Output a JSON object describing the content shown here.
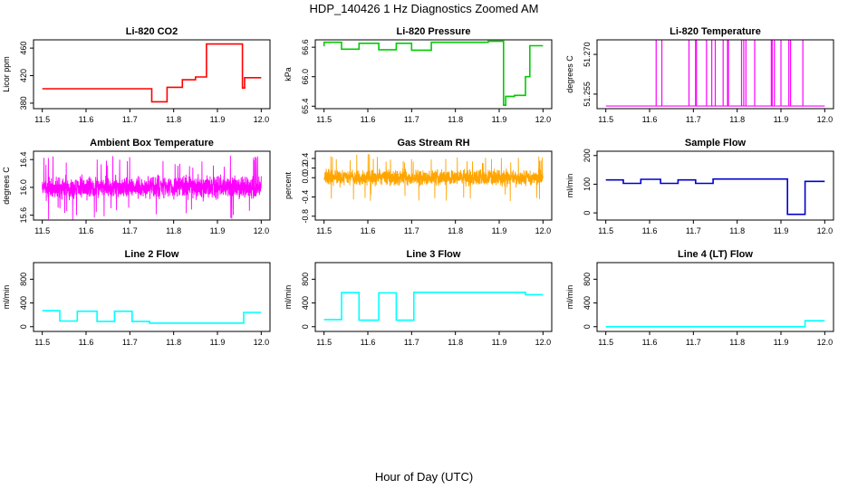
{
  "figure": {
    "title": "HDP_140426  1 Hz Diagnostics Zoomed AM",
    "xlabel": "Hour of Day (UTC)"
  },
  "chart_data": [
    {
      "type": "line",
      "title": "Li-820 CO2",
      "ylabel": "Licor ppm",
      "color": "#ff0000",
      "xlim": [
        11.48,
        12.02
      ],
      "ylim": [
        372,
        472
      ],
      "xticks": [
        "11.5",
        "11.6",
        "11.7",
        "11.8",
        "11.9",
        "12.0"
      ],
      "yticks": [
        "380",
        "420",
        "460"
      ],
      "ytick_values": [
        380,
        420,
        460
      ],
      "series": [
        {
          "x": [
            11.5,
            11.75,
            11.75,
            11.785,
            11.785,
            11.82,
            11.82,
            11.85,
            11.85,
            11.875,
            11.875,
            11.957,
            11.957,
            11.962,
            11.962,
            12.0
          ],
          "y": [
            401,
            401,
            382,
            382,
            403,
            403,
            414,
            414,
            418,
            418,
            466,
            466,
            402,
            402,
            417,
            417
          ]
        }
      ]
    },
    {
      "type": "line",
      "title": "Li-820 Pressure",
      "ylabel": "kPa",
      "color": "#00cc00",
      "xlim": [
        11.48,
        12.02
      ],
      "ylim": [
        65.35,
        66.75
      ],
      "xticks": [
        "11.5",
        "11.6",
        "11.7",
        "11.8",
        "11.9",
        "12.0"
      ],
      "yticks": [
        "65.4",
        "66.0",
        "66.6"
      ],
      "ytick_values": [
        65.4,
        66.0,
        66.6
      ],
      "series": [
        {
          "x": [
            11.5,
            11.5,
            11.54,
            11.54,
            11.58,
            11.58,
            11.625,
            11.625,
            11.665,
            11.665,
            11.7,
            11.7,
            11.745,
            11.745,
            11.875,
            11.875,
            11.91,
            11.91,
            11.915,
            11.915,
            11.935,
            11.935,
            11.96,
            11.96,
            11.97,
            11.97,
            12.0
          ],
          "y": [
            66.62,
            66.7,
            66.7,
            66.56,
            66.56,
            66.68,
            66.68,
            66.55,
            66.55,
            66.68,
            66.68,
            66.54,
            66.54,
            66.7,
            66.7,
            66.72,
            66.72,
            65.42,
            65.42,
            65.6,
            65.6,
            65.62,
            65.62,
            66.0,
            66.0,
            66.63,
            66.63
          ]
        }
      ]
    },
    {
      "type": "line",
      "title": "Li-820 Temperature",
      "ylabel": "degrees C",
      "color": "#ff00ff",
      "xlim": [
        11.48,
        12.02
      ],
      "ylim": [
        51.2495,
        51.2755
      ],
      "xticks": [
        "11.5",
        "11.6",
        "11.7",
        "11.8",
        "11.9",
        "12.0"
      ],
      "yticks": [
        "51.255",
        "51.270"
      ],
      "ytick_values": [
        51.255,
        51.27
      ],
      "baseline": 51.2505,
      "spike_level": 51.2755,
      "spike_x": [
        11.615,
        11.628,
        11.69,
        11.705,
        11.707,
        11.73,
        11.742,
        11.75,
        11.768,
        11.778,
        11.78,
        11.81,
        11.815,
        11.82,
        11.84,
        11.878,
        11.88,
        11.885,
        11.9,
        11.918,
        11.922,
        11.95
      ]
    },
    {
      "type": "line",
      "title": "Ambient Box Temperature",
      "ylabel": "degrees C",
      "color": "#ff00ff",
      "xlim": [
        11.48,
        12.02
      ],
      "ylim": [
        15.53,
        16.52
      ],
      "xticks": [
        "11.5",
        "11.6",
        "11.7",
        "11.8",
        "11.9",
        "12.0"
      ],
      "yticks": [
        "15.6",
        "16.0",
        "16.4"
      ],
      "ytick_values": [
        15.6,
        16.0,
        16.4
      ],
      "noise": {
        "center": 16.0,
        "amplitude": 0.22,
        "spike": 0.47,
        "samples": 1800,
        "seed": 7
      }
    },
    {
      "type": "line",
      "title": "Gas Stream RH",
      "ylabel": "percent",
      "color": "#ffa500",
      "xlim": [
        11.48,
        12.02
      ],
      "ylim": [
        -0.88,
        0.55
      ],
      "xticks": [
        "11.5",
        "11.6",
        "11.7",
        "11.8",
        "11.9",
        "12.0"
      ],
      "yticks": [
        "-0.8",
        "-0.4",
        "0.0",
        "0.2",
        "0.4"
      ],
      "ytick_values": [
        -0.8,
        -0.4,
        0.0,
        0.2,
        0.4
      ],
      "noise": {
        "center": 0.0,
        "amplitude": 0.22,
        "spike": 0.5,
        "samples": 1800,
        "seed": 13,
        "min": -0.82,
        "max": 0.5
      }
    },
    {
      "type": "line",
      "title": "Sample Flow",
      "ylabel": "ml/min",
      "color": "#0000cc",
      "xlim": [
        11.48,
        12.02
      ],
      "ylim": [
        -25,
        215
      ],
      "xticks": [
        "11.5",
        "11.6",
        "11.7",
        "11.8",
        "11.9",
        "12.0"
      ],
      "yticks": [
        "0",
        "100",
        "200"
      ],
      "ytick_values": [
        0,
        100,
        200
      ],
      "series": [
        {
          "x": [
            11.5,
            11.54,
            11.54,
            11.58,
            11.58,
            11.625,
            11.625,
            11.665,
            11.665,
            11.705,
            11.705,
            11.745,
            11.745,
            11.915,
            11.915,
            11.955,
            11.955,
            12.0
          ],
          "y": [
            115,
            115,
            103,
            103,
            117,
            117,
            103,
            103,
            115,
            115,
            103,
            103,
            118,
            118,
            -5,
            -5,
            110,
            110
          ]
        }
      ]
    },
    {
      "type": "line",
      "title": "Line 2 Flow",
      "ylabel": "ml/min",
      "color": "#00ffff",
      "xlim": [
        11.48,
        12.02
      ],
      "ylim": [
        -80,
        1080
      ],
      "xticks": [
        "11.5",
        "11.6",
        "11.7",
        "11.8",
        "11.9",
        "12.0"
      ],
      "yticks": [
        "0",
        "400",
        "800"
      ],
      "ytick_values": [
        0,
        400,
        800
      ],
      "series": [
        {
          "x": [
            11.5,
            11.54,
            11.54,
            11.58,
            11.58,
            11.625,
            11.625,
            11.665,
            11.665,
            11.705,
            11.705,
            11.745,
            11.745,
            11.96,
            11.96,
            12.0
          ],
          "y": [
            270,
            270,
            95,
            95,
            260,
            260,
            90,
            90,
            260,
            260,
            90,
            90,
            60,
            60,
            240,
            240
          ]
        }
      ]
    },
    {
      "type": "line",
      "title": "Line 3 Flow",
      "ylabel": "ml/min",
      "color": "#00ffff",
      "xlim": [
        11.48,
        12.02
      ],
      "ylim": [
        -80,
        1080
      ],
      "xticks": [
        "11.5",
        "11.6",
        "11.7",
        "11.8",
        "11.9",
        "12.0"
      ],
      "yticks": [
        "0",
        "400",
        "800"
      ],
      "ytick_values": [
        0,
        400,
        800
      ],
      "series": [
        {
          "x": [
            11.5,
            11.54,
            11.54,
            11.58,
            11.58,
            11.625,
            11.625,
            11.665,
            11.665,
            11.705,
            11.705,
            11.96,
            11.96,
            12.0
          ],
          "y": [
            120,
            120,
            575,
            575,
            110,
            110,
            570,
            570,
            110,
            110,
            580,
            580,
            540,
            540
          ]
        }
      ]
    },
    {
      "type": "line",
      "title": "Line 4 (LT) Flow",
      "ylabel": "ml/min",
      "color": "#00ffff",
      "xlim": [
        11.48,
        12.02
      ],
      "ylim": [
        -80,
        1080
      ],
      "xticks": [
        "11.5",
        "11.6",
        "11.7",
        "11.8",
        "11.9",
        "12.0"
      ],
      "yticks": [
        "0",
        "400",
        "800"
      ],
      "ytick_values": [
        0,
        400,
        800
      ],
      "series": [
        {
          "x": [
            11.5,
            11.955,
            11.955,
            12.0
          ],
          "y": [
            0,
            0,
            100,
            100
          ]
        }
      ]
    }
  ]
}
